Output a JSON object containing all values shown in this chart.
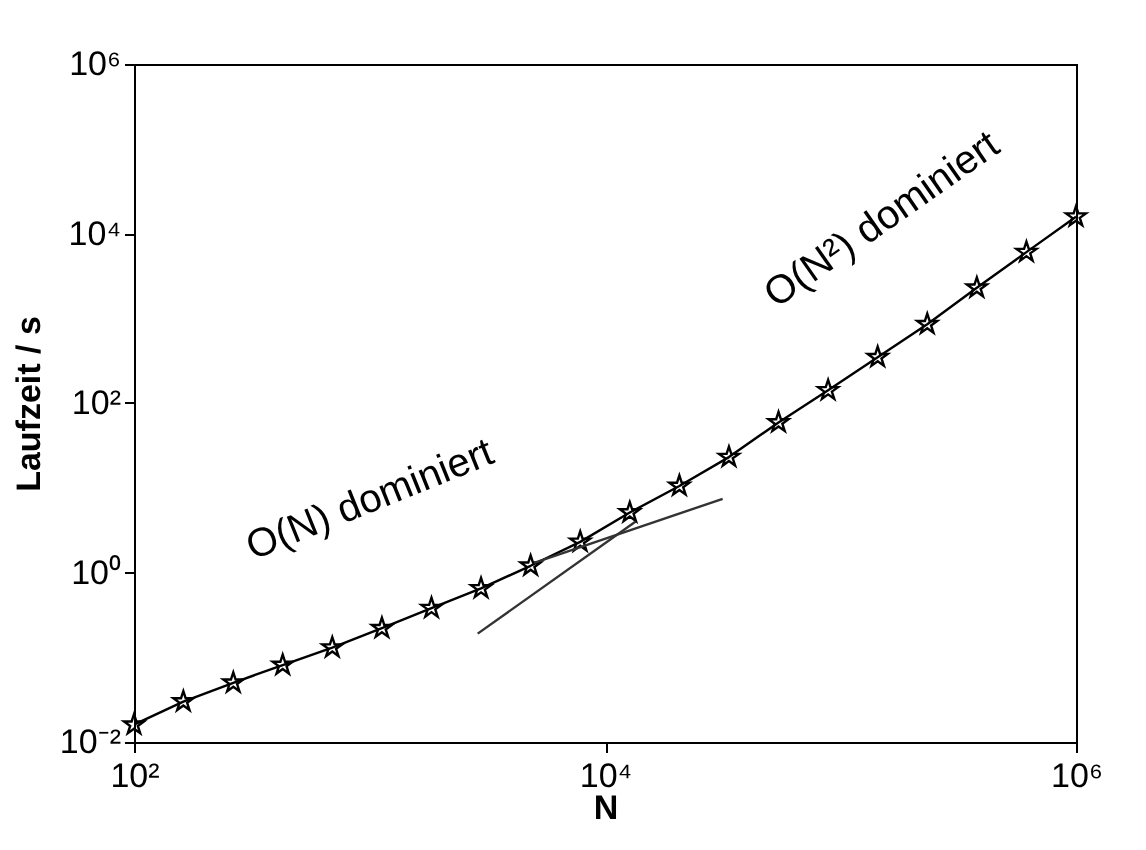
{
  "chart_data": {
    "type": "line",
    "xlabel": "N",
    "ylabel": "Laufzeit / s",
    "log": "xy",
    "grid": false,
    "xlim": [
      100,
      1000000
    ],
    "ylim": [
      0.01,
      1000000
    ],
    "xticks": [
      {
        "value": 100,
        "label": "10²"
      },
      {
        "value": 10000,
        "label": "10⁴"
      },
      {
        "value": 1000000,
        "label": "10⁶"
      }
    ],
    "yticks": [
      {
        "value": 0.01,
        "label": "10⁻²"
      },
      {
        "value": 1,
        "label": "10⁰"
      },
      {
        "value": 100,
        "label": "10²"
      },
      {
        "value": 10000,
        "label": "10⁴"
      },
      {
        "value": 1000000,
        "label": "10⁶"
      }
    ],
    "series": [
      {
        "color": "#000000",
        "marker": "star",
        "line_style": "solid",
        "x": [
          100,
          162,
          264,
          428,
          695,
          1129,
          1833,
          2976,
          4833,
          7848,
          12743,
          20691,
          33598,
          54556,
          88587,
          143845,
          233572,
          379269,
          615848,
          1000000
        ],
        "values": [
          0.016,
          0.03,
          0.05,
          0.081,
          0.13,
          0.22,
          0.38,
          0.65,
          1.2,
          2.3,
          5.1,
          10.5,
          23,
          59,
          141,
          347,
          851,
          2290,
          6030,
          15800
        ]
      },
      {
        "color": "#333333",
        "marker": "none",
        "line_style": "solid",
        "x": [
          2880,
          13500
        ],
        "values": [
          0.19,
          4
        ]
      },
      {
        "color": "#333333",
        "marker": "none",
        "line_style": "solid",
        "x": [
          5000,
          31600
        ],
        "values": [
          1.3,
          7.4
        ]
      }
    ],
    "annotations": [
      "O(N) dominiert",
      "O(N²) dominiert"
    ]
  }
}
